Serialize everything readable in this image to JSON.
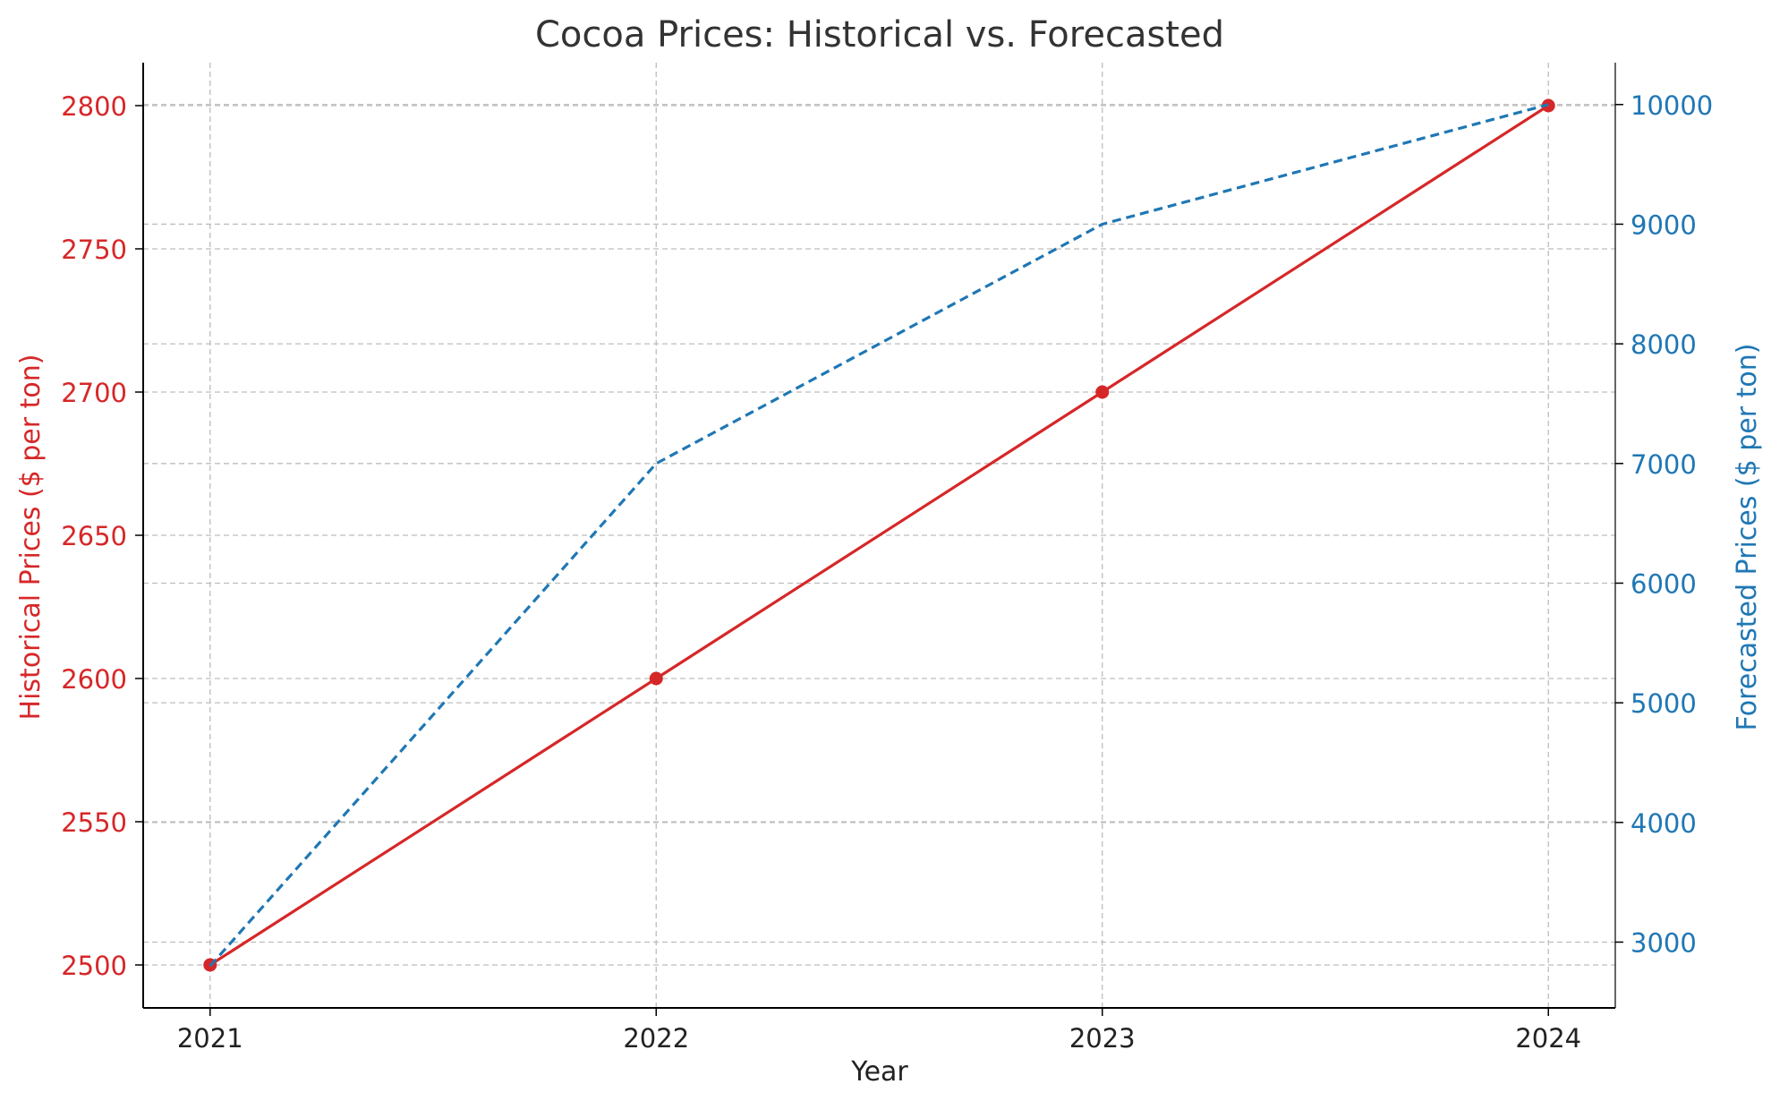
{
  "chart_data": {
    "type": "line",
    "title": "Cocoa Prices: Historical vs. Forecasted",
    "xlabel": "Year",
    "ylabel_left": "Historical Prices ($ per ton)",
    "ylabel_right": "Forecasted Prices ($ per ton)",
    "x": [
      2021,
      2022,
      2023,
      2024
    ],
    "x_ticks": [
      "2021",
      "2022",
      "2023",
      "2024"
    ],
    "y_left_ticks": [
      2500,
      2550,
      2600,
      2650,
      2700,
      2750,
      2800
    ],
    "y_right_ticks": [
      3000,
      4000,
      5000,
      6000,
      7000,
      8000,
      9000,
      10000
    ],
    "ylim_left": [
      2485,
      2815
    ],
    "ylim_right": [
      2450,
      10350
    ],
    "grid": true,
    "series": [
      {
        "axis": "left",
        "values": [
          2500,
          2600,
          2700,
          2800
        ],
        "style": "solid",
        "markers": true,
        "color": "#d62728"
      },
      {
        "axis": "right",
        "values": [
          2800,
          7000,
          9000,
          10000
        ],
        "style": "dashed",
        "markers": false,
        "color": "#1f77b4"
      }
    ]
  }
}
